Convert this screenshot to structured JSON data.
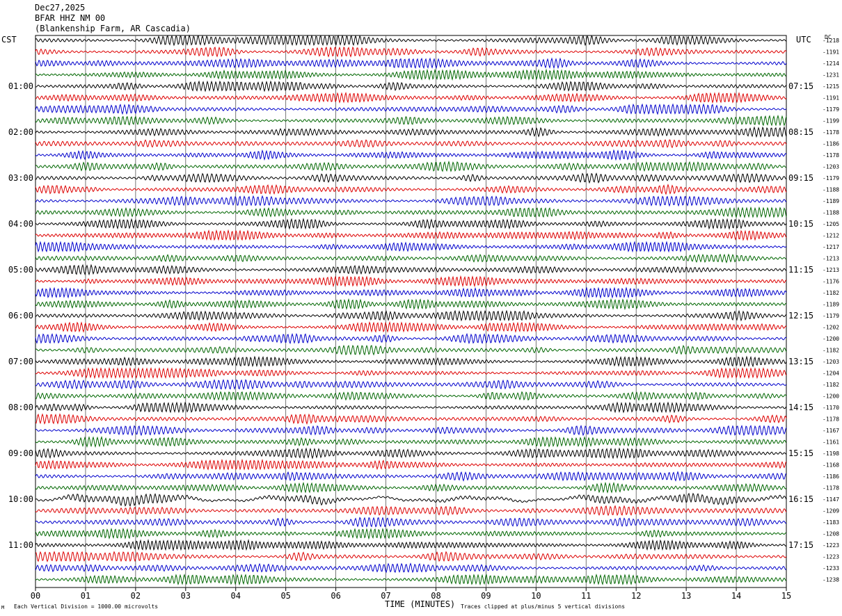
{
  "header": {
    "date": "Dec27,2025",
    "station": "BFAR HHZ NM 00",
    "site": "(Blankenship Farm, AR Cascadia)"
  },
  "left_timezone": "CST",
  "right_timezone": "UTC",
  "dc_label": "DC",
  "footer": {
    "scale_note": "Each Vertical Division = 1000.00 microvolts",
    "clip_note": "Traces clipped at plus/minus 5 vertical divisions",
    "mark": "M"
  },
  "colors": {
    "trace_cycle": [
      "#000000",
      "#dd0000",
      "#0000cc",
      "#006600"
    ],
    "grid": "#555555",
    "background": "#ffffff"
  },
  "chart_data": {
    "type": "line",
    "title": "",
    "xlabel": "TIME (MINUTES)",
    "ylabel": "",
    "xlim": [
      0,
      15
    ],
    "x_ticks": [
      "00",
      "01",
      "02",
      "03",
      "04",
      "05",
      "06",
      "07",
      "08",
      "09",
      "10",
      "11",
      "12",
      "13",
      "14",
      "15"
    ],
    "trace_minutes": 15,
    "traces_per_hour": 4,
    "grid": true,
    "left_hour_labels": [
      "01:00",
      "02:00",
      "03:00",
      "04:00",
      "05:00",
      "06:00",
      "07:00",
      "08:00",
      "09:00",
      "10:00",
      "11:00"
    ],
    "right_hour_labels": [
      "07:15",
      "08:15",
      "09:15",
      "10:15",
      "11:15",
      "12:15",
      "13:15",
      "14:15",
      "15:15",
      "16:15",
      "17:15"
    ],
    "dc_offsets": [
      -1218,
      -1191,
      -1214,
      -1231,
      -1215,
      -1191,
      -1179,
      -1199,
      -1178,
      -1186,
      -1178,
      -1203,
      -1179,
      -1188,
      -1189,
      -1188,
      -1205,
      -1212,
      -1217,
      -1213,
      -1213,
      -1176,
      -1182,
      -1189,
      -1179,
      -1202,
      -1200,
      -1182,
      -1203,
      -1204,
      -1182,
      -1200,
      -1170,
      -1178,
      -1167,
      -1161,
      -1198,
      -1168,
      -1186,
      -1178,
      -1147,
      -1209,
      -1183,
      -1208,
      -1223,
      -1223,
      -1233,
      -1238
    ]
  }
}
